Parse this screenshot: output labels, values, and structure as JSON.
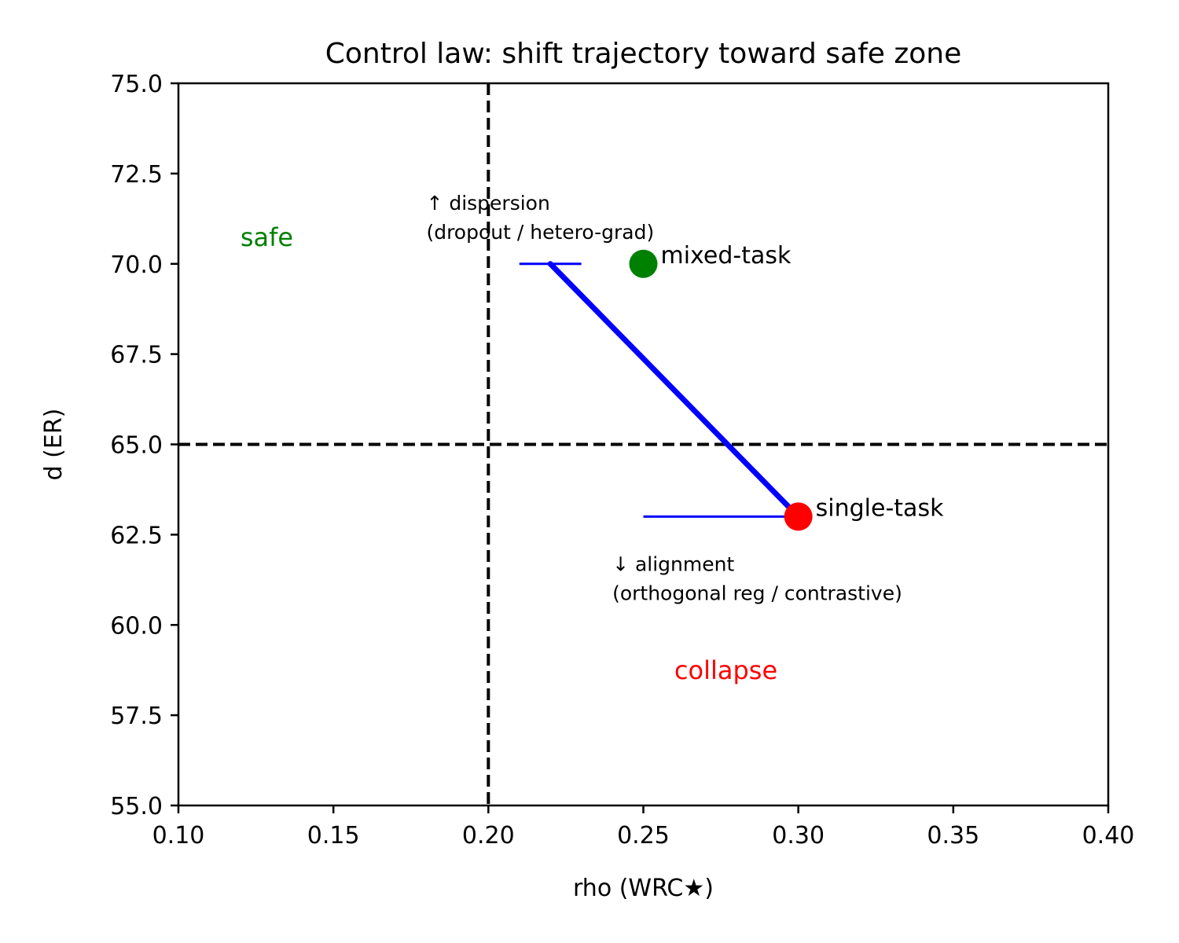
{
  "chart_data": {
    "type": "scatter",
    "title": "Control law: shift trajectory toward safe zone",
    "xlabel": "rho (WRC★)",
    "ylabel": "d (ER)",
    "xlim": [
      0.1,
      0.4
    ],
    "ylim": [
      55.0,
      75.0
    ],
    "xticks": [
      "0.10",
      "0.15",
      "0.20",
      "0.25",
      "0.30",
      "0.35",
      "0.40"
    ],
    "yticks": [
      "55.0",
      "57.5",
      "60.0",
      "62.5",
      "65.0",
      "67.5",
      "70.0",
      "72.5",
      "75.0"
    ],
    "grid": false,
    "thresholds": {
      "rho": 0.2,
      "d": 65.0
    },
    "points": [
      {
        "label": "single-task",
        "x": 0.3,
        "y": 63.0,
        "color": "#ff0000"
      },
      {
        "label": "mixed-task",
        "x": 0.25,
        "y": 70.0,
        "color": "#008000"
      }
    ],
    "trajectory": {
      "from": [
        0.3,
        63.0
      ],
      "to": [
        0.22,
        70.0
      ],
      "color": "#0000ff"
    },
    "control_arrows": [
      {
        "from": [
          0.25,
          63.0
        ],
        "to": [
          0.3,
          63.0
        ],
        "color": "#0000ff"
      },
      {
        "from": [
          0.21,
          70.0
        ],
        "to": [
          0.23,
          70.0
        ],
        "color": "#0000ff"
      }
    ],
    "regions": [
      {
        "label": "safe",
        "x": 0.12,
        "y": 70.5,
        "color": "#008000"
      },
      {
        "label": "collapse",
        "x": 0.26,
        "y": 58.5,
        "color": "#ff0000"
      }
    ],
    "annotations": [
      {
        "lines": [
          "↑ dispersion",
          "(dropout / hetero-grad)"
        ],
        "x": 0.18,
        "y": 71.5
      },
      {
        "lines": [
          "↓ alignment",
          "(orthogonal reg / contrastive)"
        ],
        "x": 0.24,
        "y": 61.5
      }
    ]
  }
}
